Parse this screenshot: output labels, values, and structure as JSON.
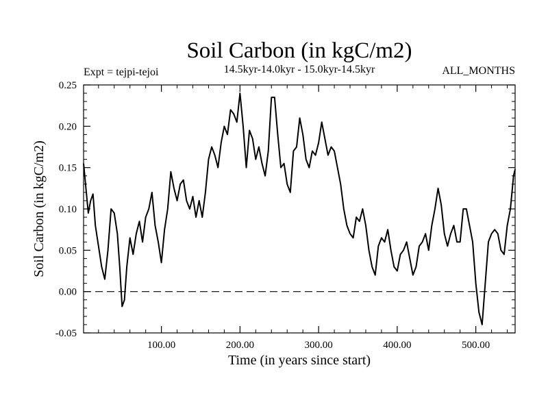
{
  "chart_data": {
    "type": "line",
    "title": "Soil Carbon (in kgC/m2)",
    "subtitle": "14.5kyr-14.0kyr - 15.0kyr-14.5kyr",
    "left_note": "Expt = tejpi-tejoi",
    "right_note": "ALL_MONTHS",
    "xlabel": "Time (in years since start)",
    "ylabel": "Soil Carbon (in kgC/m2)",
    "xlim": [
      1,
      550
    ],
    "ylim": [
      -0.05,
      0.25
    ],
    "xticks": [
      100,
      200,
      300,
      400,
      500
    ],
    "xtick_labels": [
      "100.00",
      "200.00",
      "300.00",
      "400.00",
      "500.00"
    ],
    "yticks": [
      -0.05,
      0.0,
      0.05,
      0.1,
      0.15,
      0.2,
      0.25
    ],
    "ytick_labels": [
      "-0.05",
      "0.00",
      "0.05",
      "0.10",
      "0.15",
      "0.20",
      "0.25"
    ],
    "reference_line": {
      "y": 0.0,
      "style": "dashed"
    },
    "series": [
      {
        "name": "Soil Carbon",
        "color": "#000000",
        "x": [
          1,
          4,
          7,
          10,
          13,
          16,
          20,
          24,
          28,
          32,
          36,
          40,
          44,
          47,
          50,
          53,
          56,
          60,
          64,
          68,
          72,
          76,
          80,
          84,
          88,
          92,
          96,
          100,
          104,
          108,
          112,
          116,
          120,
          124,
          128,
          132,
          136,
          140,
          144,
          148,
          152,
          156,
          160,
          164,
          168,
          172,
          176,
          180,
          184,
          188,
          192,
          196,
          200,
          204,
          208,
          212,
          216,
          220,
          224,
          228,
          232,
          236,
          240,
          244,
          248,
          252,
          256,
          260,
          264,
          268,
          272,
          276,
          280,
          284,
          288,
          292,
          296,
          300,
          304,
          308,
          312,
          316,
          320,
          324,
          328,
          332,
          336,
          340,
          344,
          348,
          352,
          356,
          360,
          364,
          368,
          372,
          376,
          380,
          384,
          388,
          392,
          396,
          400,
          404,
          408,
          412,
          416,
          420,
          424,
          428,
          432,
          436,
          440,
          444,
          448,
          452,
          456,
          460,
          464,
          468,
          472,
          476,
          480,
          484,
          488,
          492,
          496,
          500,
          504,
          508,
          512,
          516,
          520,
          524,
          528,
          532,
          536,
          540,
          544,
          548,
          550
        ],
        "values": [
          0.155,
          0.125,
          0.095,
          0.11,
          0.118,
          0.08,
          0.055,
          0.03,
          0.015,
          0.05,
          0.1,
          0.095,
          0.07,
          0.03,
          -0.018,
          -0.01,
          0.03,
          0.065,
          0.045,
          0.07,
          0.085,
          0.06,
          0.09,
          0.1,
          0.12,
          0.08,
          0.06,
          0.035,
          0.075,
          0.1,
          0.145,
          0.125,
          0.11,
          0.13,
          0.135,
          0.11,
          0.1,
          0.115,
          0.09,
          0.11,
          0.09,
          0.12,
          0.16,
          0.175,
          0.165,
          0.15,
          0.18,
          0.2,
          0.19,
          0.22,
          0.215,
          0.205,
          0.24,
          0.2,
          0.15,
          0.195,
          0.185,
          0.16,
          0.175,
          0.155,
          0.14,
          0.17,
          0.235,
          0.235,
          0.19,
          0.15,
          0.155,
          0.13,
          0.12,
          0.17,
          0.175,
          0.21,
          0.19,
          0.16,
          0.15,
          0.17,
          0.165,
          0.18,
          0.205,
          0.185,
          0.165,
          0.175,
          0.17,
          0.15,
          0.13,
          0.1,
          0.08,
          0.07,
          0.065,
          0.09,
          0.085,
          0.1,
          0.08,
          0.05,
          0.03,
          0.02,
          0.055,
          0.065,
          0.06,
          0.075,
          0.05,
          0.03,
          0.025,
          0.045,
          0.05,
          0.06,
          0.04,
          0.02,
          0.03,
          0.055,
          0.06,
          0.07,
          0.05,
          0.08,
          0.1,
          0.125,
          0.105,
          0.07,
          0.055,
          0.07,
          0.08,
          0.06,
          0.06,
          0.1,
          0.1,
          0.08,
          0.06,
          0.01,
          -0.025,
          -0.04,
          0.01,
          0.06,
          0.07,
          0.075,
          0.07,
          0.05,
          0.045,
          0.08,
          0.1,
          0.14,
          0.148
        ]
      }
    ]
  }
}
